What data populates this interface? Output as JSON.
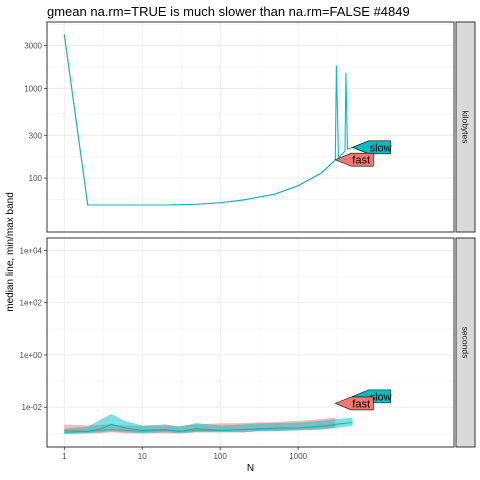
{
  "chart_data": {
    "type": "line",
    "title": "gmean na.rm=TRUE is much slower than na.rm=FALSE #4849",
    "xlabel": "N",
    "ylabel": "median line, min/max band",
    "x_scale": "log10",
    "x_range": [
      0.6,
      100000
    ],
    "x_ticks": [
      1,
      10,
      100,
      1000
    ],
    "x_tick_labels": [
      "1",
      "10",
      "100",
      "1000"
    ],
    "grid": true,
    "legend": "none",
    "series_labels": [
      "slow",
      "fast"
    ],
    "colors": {
      "slow": "#00BFC4",
      "fast": "#F8766D"
    },
    "panels": [
      {
        "strip": "kilobytes",
        "y_scale": "log10",
        "y_range": [
          25,
          5500
        ],
        "y_ticks": [
          100,
          300,
          1000,
          3000
        ],
        "y_tick_labels": [
          "100",
          "300",
          "1000",
          "3000"
        ],
        "series": [
          {
            "name": "slow",
            "x": [
              1,
              2,
              5,
              10,
              20,
              50,
              100,
              200,
              500,
              1000,
              2000,
              2800,
              3000,
              3100,
              3300,
              4000,
              4100,
              4300,
              5000
            ],
            "y": [
              4000,
              50,
              50,
              50,
              50,
              51,
              53,
              57,
              66,
              82,
              114,
              150,
              160,
              1800,
              168,
              200,
              1500,
              210,
              220
            ]
          },
          {
            "name": "fast",
            "x": [
              1,
              2,
              5,
              10,
              20,
              50,
              100,
              200,
              500,
              1000,
              2000,
              3000
            ],
            "y": [
              4000,
              50,
              50,
              50,
              50,
              51,
              53,
              57,
              66,
              82,
              114,
              160
            ]
          }
        ],
        "labels": [
          {
            "series": "slow",
            "text": "slow",
            "x": 5000,
            "y": 220
          },
          {
            "series": "fast",
            "text": "fast",
            "x": 3000,
            "y": 160
          }
        ]
      },
      {
        "strip": "seconds",
        "y_scale": "log10",
        "y_range": [
          0.0003,
          30000
        ],
        "y_ticks": [
          0.01,
          1,
          100,
          10000
        ],
        "y_tick_labels": [
          "1e-02",
          "1e+00",
          "1e+02",
          "1e+04"
        ],
        "series": [
          {
            "name": "slow",
            "x": [
              1,
              2,
              3,
              4,
              6,
              10,
              20,
              30,
              50,
              100,
              200,
              300,
              500,
              1000,
              2000,
              3000,
              5000
            ],
            "y": [
              0.0011,
              0.0012,
              0.0015,
              0.0022,
              0.0016,
              0.0013,
              0.0014,
              0.0012,
              0.0015,
              0.0013,
              0.0014,
              0.0015,
              0.0016,
              0.0016,
              0.0019,
              0.0022,
              0.0026
            ],
            "min": [
              0.0009,
              0.001,
              0.0011,
              0.0012,
              0.0011,
              0.001,
              0.0011,
              0.001,
              0.0011,
              0.0011,
              0.0011,
              0.0012,
              0.0012,
              0.0013,
              0.0014,
              0.0016,
              0.0019
            ],
            "max": [
              0.0015,
              0.0018,
              0.0035,
              0.0055,
              0.003,
              0.002,
              0.0022,
              0.0018,
              0.0025,
              0.002,
              0.0022,
              0.0024,
              0.0025,
              0.0026,
              0.003,
              0.0035,
              0.004
            ]
          },
          {
            "name": "fast",
            "x": [
              1,
              2,
              3,
              4,
              6,
              10,
              20,
              30,
              50,
              100,
              200,
              300,
              500,
              1000,
              2000,
              3000
            ],
            "y": [
              0.0013,
              0.0012,
              0.0013,
              0.0014,
              0.0013,
              0.0012,
              0.0013,
              0.0012,
              0.0013,
              0.0013,
              0.0014,
              0.0014,
              0.0015,
              0.0016,
              0.0018,
              0.002
            ],
            "min": [
              0.001,
              0.001,
              0.001,
              0.0011,
              0.001,
              0.001,
              0.001,
              0.001,
              0.0011,
              0.0011,
              0.0011,
              0.0012,
              0.0012,
              0.0013,
              0.0014,
              0.0016
            ],
            "max": [
              0.0022,
              0.002,
              0.0021,
              0.0022,
              0.002,
              0.0019,
              0.002,
              0.0019,
              0.0022,
              0.0024,
              0.0025,
              0.0026,
              0.0027,
              0.003,
              0.0035,
              0.004
            ]
          }
        ],
        "labels": [
          {
            "series": "slow",
            "text": "slow",
            "x": 5000,
            "y": 0.026
          },
          {
            "series": "fast",
            "text": "fast",
            "x": 3000,
            "y": 0.014
          }
        ]
      }
    ]
  }
}
